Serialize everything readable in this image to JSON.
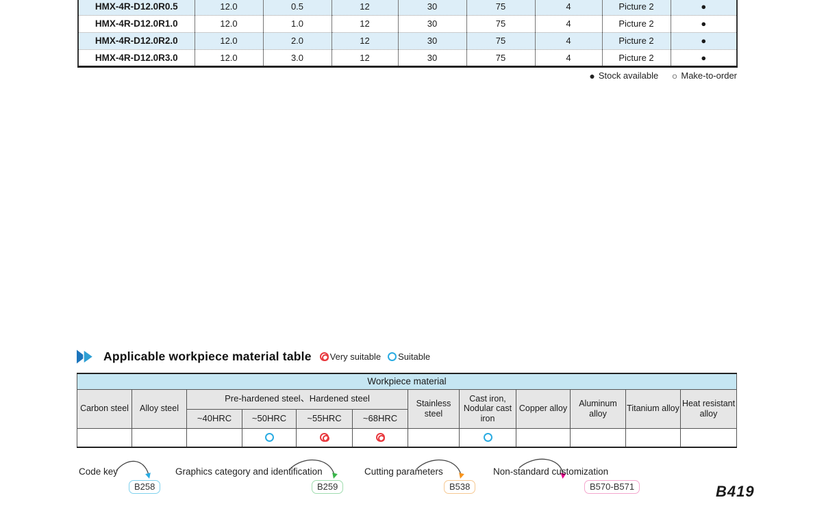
{
  "catalog_table": {
    "rows": [
      {
        "model": "HMX-4R-D12.0R0.5",
        "values": [
          "12.0",
          "0.5",
          "12",
          "30",
          "75",
          "4"
        ],
        "picture": "Picture 2",
        "stock": "stock_available"
      },
      {
        "model": "HMX-4R-D12.0R1.0",
        "values": [
          "12.0",
          "1.0",
          "12",
          "30",
          "75",
          "4"
        ],
        "picture": "Picture 2",
        "stock": "stock_available"
      },
      {
        "model": "HMX-4R-D12.0R2.0",
        "values": [
          "12.0",
          "2.0",
          "12",
          "30",
          "75",
          "4"
        ],
        "picture": "Picture 2",
        "stock": "stock_available"
      },
      {
        "model": "HMX-4R-D12.0R3.0",
        "values": [
          "12.0",
          "3.0",
          "12",
          "30",
          "75",
          "4"
        ],
        "picture": "Picture 2",
        "stock": "stock_available"
      }
    ],
    "stock_filled_symbol": "●",
    "stock_open_symbol": "○"
  },
  "stock_legend": {
    "stock_available": "Stock available",
    "make_to_order": "Make-to-order"
  },
  "section_header": {
    "title": "Applicable workpiece material table",
    "very_suitable_label": "Very suitable",
    "suitable_label": "Suitable"
  },
  "workpiece_table": {
    "title": "Workpiece material",
    "columns_before_group": [
      "Carbon steel",
      "Alloy steel"
    ],
    "group": {
      "label": "Pre-hardened steel、Hardened steel",
      "sub_columns": [
        "~40HRC",
        "~50HRC",
        "~55HRC",
        "~68HRC"
      ]
    },
    "columns_after_group": [
      "Stainless steel",
      "Cast iron, Nodular cast iron",
      "Copper alloy",
      "Aluminum alloy",
      "Titanium alloy",
      "Heat resistant alloy"
    ],
    "ratings": [
      "",
      "",
      "",
      "suitable",
      "very_suitable",
      "very_suitable",
      "",
      "suitable",
      "",
      "",
      "",
      ""
    ]
  },
  "footer_links": [
    {
      "label": "Code key",
      "page": "B258",
      "accent": "#29abe2",
      "box_border": "#7fd1ee"
    },
    {
      "label": "Graphics category and identification",
      "page": "B259",
      "accent": "#39b54a",
      "box_border": "#9fdcae"
    },
    {
      "label": "Cutting parameters",
      "page": "B538",
      "accent": "#f7941d",
      "box_border": "#f6c891"
    },
    {
      "label": "Non-standard customization",
      "page": "B570-B571",
      "accent": "#ec008c",
      "box_border": "#f4a6cd"
    }
  ],
  "page_number": "B419",
  "colors": {
    "row_alt_blue": "#ddeef8",
    "table_title_blue": "#c5e6f2",
    "header_gray": "#e6e6e6",
    "very_suitable_red": "#e8383d",
    "suitable_blue": "#29abe2",
    "chevron_dark": "#1b75bc",
    "chevron_light": "#2e9fd4"
  }
}
